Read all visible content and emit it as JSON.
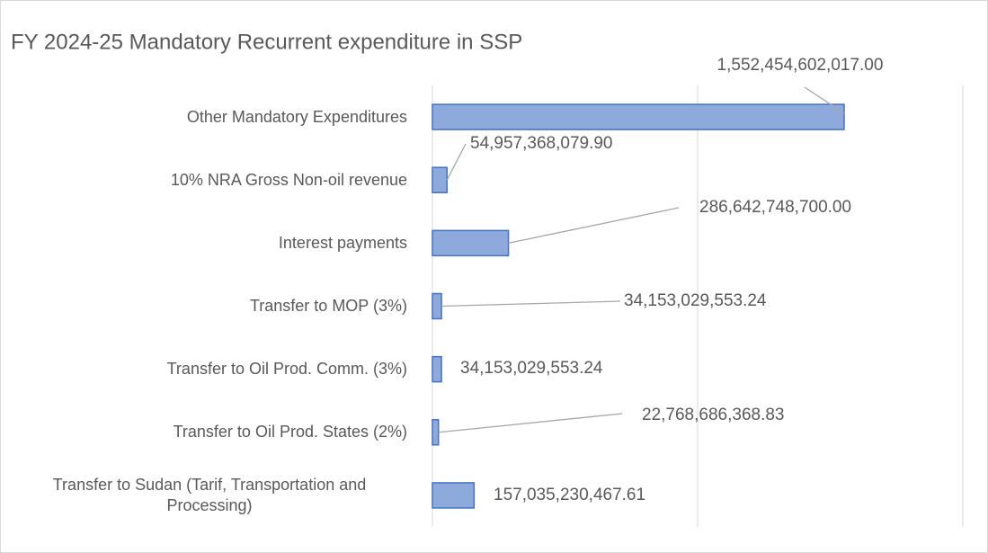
{
  "chart_data": {
    "type": "barh",
    "title": "FY 2024-25 Mandatory Recurrent expenditure in SSP",
    "categories": [
      "Other Mandatory Expenditures",
      "10% NRA Gross Non-oil revenue",
      "Interest payments",
      "Transfer to MOP (3%)",
      "Transfer to Oil Prod. Comm. (3%)",
      "Transfer to Oil Prod. States (2%)",
      "Transfer to Sudan (Tarif, Transportation and Processing)"
    ],
    "values": [
      1552454602017,
      54957368079.9,
      286642748700,
      34153029553.24,
      34153029553.24,
      22768686368.83,
      157035230467.61
    ],
    "value_labels": [
      "1,552,454,602,017.00",
      "54,957,368,079.90",
      "286,642,748,700.00",
      "34,153,029,553.24",
      "34,153,029,553.24",
      "22,768,686,368.83",
      "157,035,230,467.61"
    ],
    "color": "#8ea9db",
    "xlim": [
      0,
      2000000000000
    ],
    "xticks": [
      0,
      1000000000000,
      2000000000000
    ],
    "grid": true
  }
}
